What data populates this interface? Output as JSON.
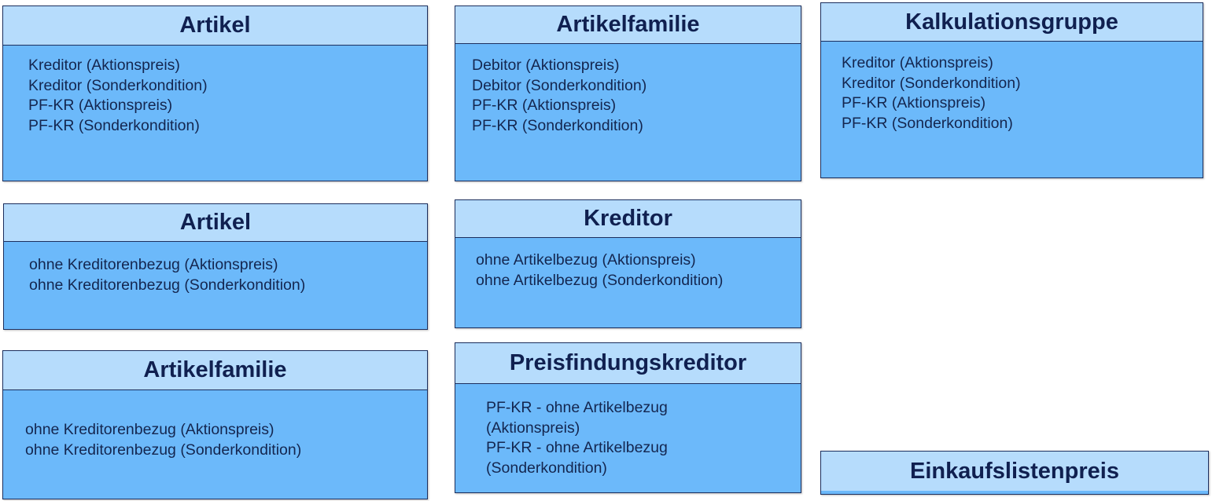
{
  "boxes": [
    {
      "title": "Artikel",
      "lines": [
        "Kreditor (Aktionspreis)",
        "Kreditor (Sonderkondition)",
        "PF-KR (Aktionspreis)",
        "PF-KR (Sonderkondition)"
      ]
    },
    {
      "title": "Artikelfamilie",
      "lines": [
        "Debitor (Aktionspreis)",
        "Debitor (Sonderkondition)",
        "PF-KR (Aktionspreis)",
        "PF-KR (Sonderkondition)"
      ]
    },
    {
      "title": "Kalkulationsgruppe",
      "lines": [
        "Kreditor (Aktionspreis)",
        "Kreditor (Sonderkondition)",
        "PF-KR (Aktionspreis)",
        "PF-KR (Sonderkondition)"
      ]
    },
    {
      "title": "Artikel",
      "lines": [
        "ohne Kreditorenbezug (Aktionspreis)",
        "ohne Kreditorenbezug (Sonderkondition)"
      ]
    },
    {
      "title": "Kreditor",
      "lines": [
        "ohne Artikelbezug (Aktionspreis)",
        "ohne Artikelbezug (Sonderkondition)"
      ]
    },
    {
      "title": "Artikelfamilie",
      "lines": [
        "ohne Kreditorenbezug (Aktionspreis)",
        "ohne Kreditorenbezug (Sonderkondition)"
      ]
    },
    {
      "title": "Preisfindungskreditor",
      "lines": [
        "PF-KR - ohne Artikelbezug (Aktionspreis)",
        "PF-KR - ohne Artikelbezug (Sonderkondition)"
      ]
    },
    {
      "title": "Einkaufslistenpreis",
      "lines": []
    }
  ],
  "colors": {
    "header_fill": "#b6dcfc",
    "body_fill": "#6cb9fa",
    "border": "#1c2f5e",
    "text": "#102050"
  }
}
